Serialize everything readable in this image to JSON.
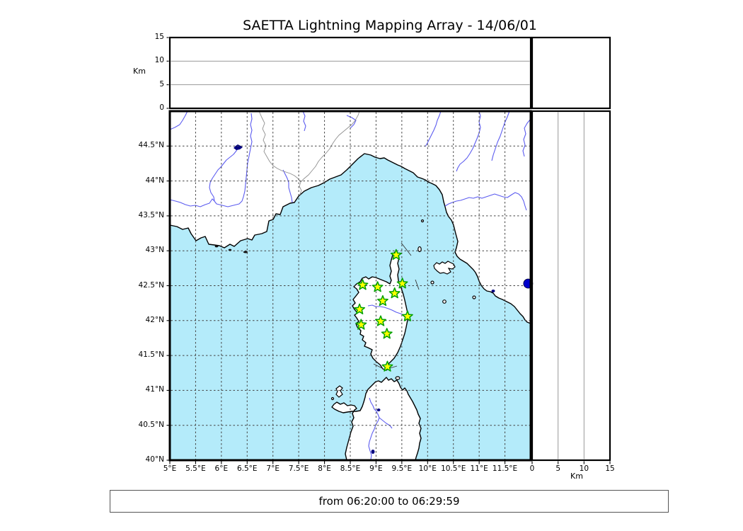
{
  "title": "SAETTA Lightning Mapping Array - 14/06/01",
  "caption": "from 06:20:00 to 06:29:59",
  "colors": {
    "sea": "#b4ebfa",
    "land": "#ffffff",
    "coastline": "#000000",
    "river": "#5c5cf0",
    "lake": "#000080",
    "gridline": "#444444",
    "panel_gridline": "#999999",
    "station_fill": "#ffff00",
    "station_stroke": "#00a000",
    "event_dot": "#0000cc"
  },
  "altitude_axis": {
    "label": "Km",
    "range_km": [
      0,
      15
    ],
    "ticks": [
      {
        "label": "0",
        "value": 0
      },
      {
        "label": "5",
        "value": 5
      },
      {
        "label": "10",
        "value": 10
      },
      {
        "label": "15",
        "value": 15
      }
    ]
  },
  "distance_axis": {
    "label": "Km",
    "range_km": [
      0,
      15
    ],
    "ticks": [
      {
        "label": "0",
        "value": 0
      },
      {
        "label": "5",
        "value": 5
      },
      {
        "label": "10",
        "value": 10
      },
      {
        "label": "15",
        "value": 15
      }
    ]
  },
  "map_axes": {
    "lon_range": [
      5,
      12
    ],
    "lat_range": [
      40,
      45
    ],
    "lon_ticks": [
      {
        "label": "5°E",
        "value": 5
      },
      {
        "label": "5.5°E",
        "value": 5.5
      },
      {
        "label": "6°E",
        "value": 6
      },
      {
        "label": "6.5°E",
        "value": 6.5
      },
      {
        "label": "7°E",
        "value": 7
      },
      {
        "label": "7.5°E",
        "value": 7.5
      },
      {
        "label": "8°E",
        "value": 8
      },
      {
        "label": "8.5°E",
        "value": 8.5
      },
      {
        "label": "9°E",
        "value": 9
      },
      {
        "label": "9.5°E",
        "value": 9.5
      },
      {
        "label": "10°E",
        "value": 10
      },
      {
        "label": "10.5°E",
        "value": 10.5
      },
      {
        "label": "11°E",
        "value": 11
      },
      {
        "label": "11.5°E",
        "value": 11.5
      }
    ],
    "lat_ticks": [
      {
        "label": "40°N",
        "value": 40
      },
      {
        "label": "40.5°N",
        "value": 40.5
      },
      {
        "label": "41°N",
        "value": 41
      },
      {
        "label": "41.5°N",
        "value": 41.5
      },
      {
        "label": "42°N",
        "value": 42
      },
      {
        "label": "42.5°N",
        "value": 42.5
      },
      {
        "label": "43°N",
        "value": 43
      },
      {
        "label": "43.5°N",
        "value": 43.5
      },
      {
        "label": "44°N",
        "value": 44
      },
      {
        "label": "44.5°N",
        "value": 44.5
      }
    ]
  },
  "stations": [
    {
      "lon": 9.39,
      "lat": 42.94
    },
    {
      "lon": 8.74,
      "lat": 42.51
    },
    {
      "lon": 9.03,
      "lat": 42.48
    },
    {
      "lon": 9.51,
      "lat": 42.53
    },
    {
      "lon": 9.36,
      "lat": 42.39
    },
    {
      "lon": 9.13,
      "lat": 42.28
    },
    {
      "lon": 8.68,
      "lat": 42.16
    },
    {
      "lon": 9.61,
      "lat": 42.06
    },
    {
      "lon": 9.09,
      "lat": 41.99
    },
    {
      "lon": 8.71,
      "lat": 41.94
    },
    {
      "lon": 9.21,
      "lat": 41.81
    },
    {
      "lon": 9.22,
      "lat": 41.34
    }
  ],
  "event_marker": {
    "lon": 11.95,
    "lat": 42.53
  }
}
